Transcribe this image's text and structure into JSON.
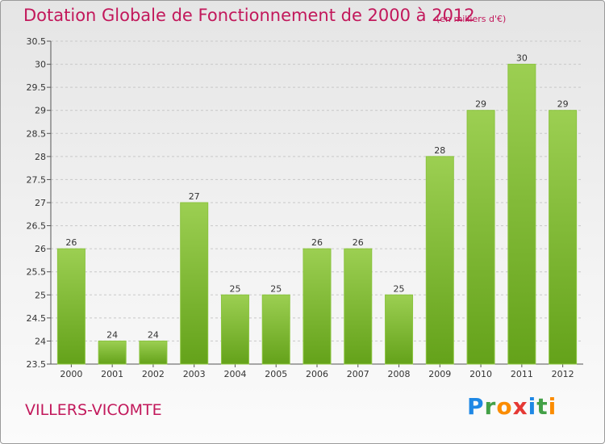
{
  "header": {
    "title": "Dotation Globale de Fonctionnement de 2000 à 2012",
    "unit": "(en milliers d'€)"
  },
  "footer": {
    "commune": "VILLERS-VICOMTE",
    "logo": {
      "text": "Proxiti",
      "letters": [
        {
          "char": "P",
          "color": "#1e88e5"
        },
        {
          "char": "r",
          "color": "#43a047"
        },
        {
          "char": "o",
          "color": "#fb8c00"
        },
        {
          "char": "x",
          "color": "#e53935"
        },
        {
          "char": "i",
          "color": "#1e88e5"
        },
        {
          "char": "t",
          "color": "#43a047"
        },
        {
          "char": "i",
          "color": "#fb8c00"
        }
      ]
    }
  },
  "colors": {
    "accent": "#c2185b",
    "bar_top": "#9ccf52",
    "bar_bottom": "#64a21a",
    "grid": "#c8c8c8"
  },
  "chart_data": {
    "type": "bar",
    "categories": [
      "2000",
      "2001",
      "2002",
      "2003",
      "2004",
      "2005",
      "2006",
      "2007",
      "2008",
      "2009",
      "2010",
      "2011",
      "2012"
    ],
    "values": [
      26,
      24,
      24,
      27,
      25,
      25,
      26,
      26,
      25,
      28,
      29,
      30,
      29
    ],
    "labels": [
      "26",
      "24",
      "24",
      "27",
      "25",
      "25",
      "26",
      "26",
      "25",
      "28",
      "29",
      "30",
      "29"
    ],
    "ylim": [
      23.5,
      30.5
    ],
    "yticks": [
      "23.5",
      "24",
      "24.5",
      "25",
      "25.5",
      "26",
      "26.5",
      "27",
      "27.5",
      "28",
      "28.5",
      "29",
      "29.5",
      "30",
      "30.5"
    ],
    "grid": true,
    "legend": "none"
  }
}
